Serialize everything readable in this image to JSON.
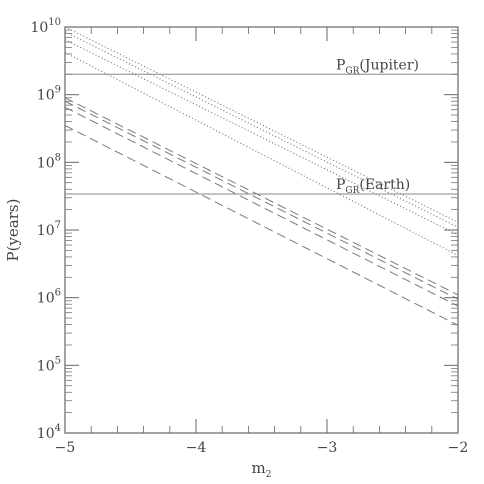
{
  "chart_data": {
    "type": "line",
    "title": "",
    "xlabel": {
      "base": "m",
      "sub": "2"
    },
    "ylabel": "P(years)",
    "xlim": [
      -5,
      -2
    ],
    "ylim_log10": [
      4,
      10
    ],
    "y_scale": "log",
    "grid": false,
    "x_ticks": [
      {
        "value": -5,
        "label": "−5"
      },
      {
        "value": -4,
        "label": "−4"
      },
      {
        "value": -3,
        "label": "−3"
      },
      {
        "value": -2,
        "label": "−2"
      }
    ],
    "y_ticks": [
      {
        "exp": 4,
        "base": "10",
        "sup": "4"
      },
      {
        "exp": 5,
        "base": "10",
        "sup": "5"
      },
      {
        "exp": 6,
        "base": "10",
        "sup": "6"
      },
      {
        "exp": 7,
        "base": "10",
        "sup": "7"
      },
      {
        "exp": 8,
        "base": "10",
        "sup": "8"
      },
      {
        "exp": 9,
        "base": "10",
        "sup": "9"
      },
      {
        "exp": 10,
        "base": "10",
        "sup": "10"
      }
    ],
    "hlines": [
      {
        "y": 2000000000.0,
        "label": {
          "base": "P",
          "sub": "GR",
          "rest": "(Jupiter)"
        }
      },
      {
        "y": 34000000.0,
        "label": {
          "base": "P",
          "sub": "GR",
          "rest": "(Earth)"
        }
      }
    ],
    "series": [
      {
        "style": "dotted",
        "x": [
          -5,
          -2
        ],
        "y": [
          10000000000.0,
          13000000.0
        ]
      },
      {
        "style": "dotted",
        "x": [
          -5,
          -2
        ],
        "y": [
          8500000000.0,
          11000000.0
        ]
      },
      {
        "style": "dotted",
        "x": [
          -5,
          -2
        ],
        "y": [
          6500000000.0,
          8500000.0
        ]
      },
      {
        "style": "dotted",
        "x": [
          -5,
          -2
        ],
        "y": [
          4200000000.0,
          4200000.0
        ]
      },
      {
        "style": "dashed",
        "x": [
          -5,
          -2
        ],
        "y": [
          900000000.0,
          1100000.0
        ]
      },
      {
        "style": "dashed",
        "x": [
          -5,
          -2
        ],
        "y": [
          800000000.0,
          950000.0
        ]
      },
      {
        "style": "dashed",
        "x": [
          -5,
          -2
        ],
        "y": [
          650000000.0,
          750000.0
        ]
      },
      {
        "style": "dashed",
        "x": [
          -5,
          -2
        ],
        "y": [
          350000000.0,
          390000.0
        ]
      }
    ]
  }
}
